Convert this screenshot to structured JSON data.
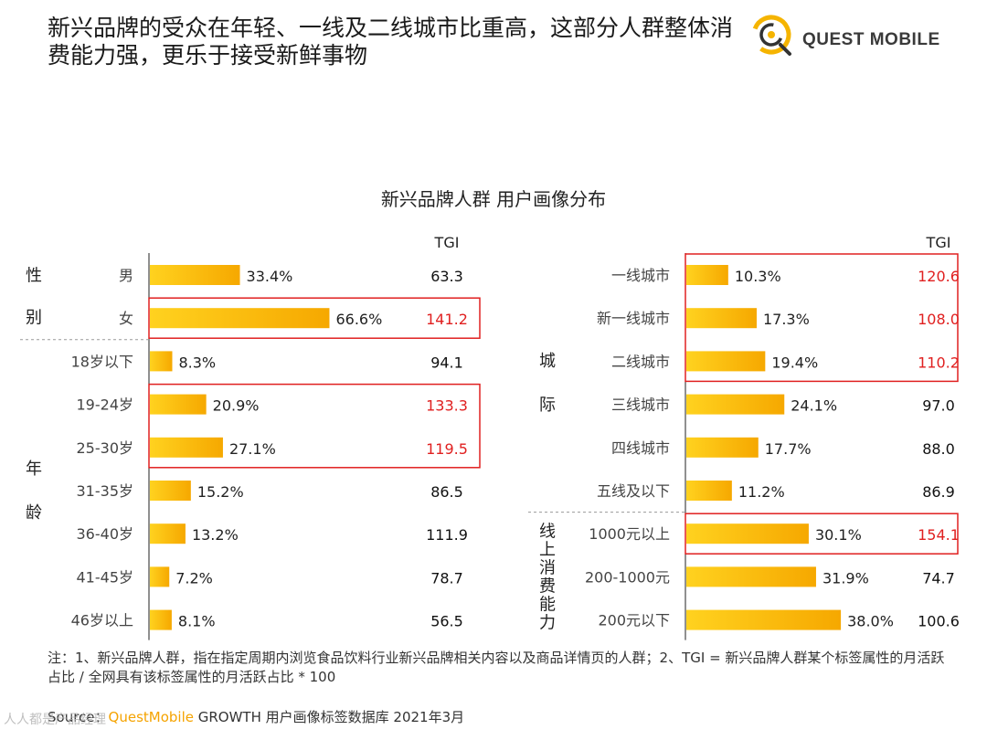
{
  "headline": "新兴品牌的受众在年轻、一线及二线城市比重高，这部分人群整体消费能力强，更乐于接受新鲜事物",
  "logo": {
    "text": "QUEST MOBILE",
    "icon": "questmobile-logo-icon"
  },
  "chart_data": {
    "type": "bar",
    "title": "新兴品牌人群 用户画像分布",
    "tgi_header": "TGI",
    "bar_color_start": "#ffd21f",
    "bar_color_end": "#f6a800",
    "highlight_color": "#e02020",
    "panels": [
      {
        "id": "left",
        "groups": [
          {
            "label": "性别",
            "categories": [
              "男",
              "女"
            ],
            "values": [
              33.4,
              66.6
            ],
            "value_labels": [
              "33.4%",
              "66.6%"
            ],
            "tgi": [
              "63.3",
              "141.2"
            ],
            "highlight": [
              false,
              true
            ]
          },
          {
            "label": "年龄",
            "categories": [
              "18岁以下",
              "19-24岁",
              "25-30岁",
              "31-35岁",
              "36-40岁",
              "41-45岁",
              "46岁以上"
            ],
            "values": [
              8.3,
              20.9,
              27.1,
              15.2,
              13.2,
              7.2,
              8.1
            ],
            "value_labels": [
              "8.3%",
              "20.9%",
              "27.1%",
              "15.2%",
              "13.2%",
              "7.2%",
              "8.1%"
            ],
            "tgi": [
              "94.1",
              "133.3",
              "119.5",
              "86.5",
              "111.9",
              "78.7",
              "56.5"
            ],
            "highlight": [
              false,
              true,
              true,
              false,
              false,
              false,
              false
            ]
          }
        ]
      },
      {
        "id": "right",
        "groups": [
          {
            "label": "城际",
            "categories": [
              "一线城市",
              "新一线城市",
              "二线城市",
              "三线城市",
              "四线城市",
              "五线及以下"
            ],
            "values": [
              10.3,
              17.3,
              19.4,
              24.1,
              17.7,
              11.2
            ],
            "value_labels": [
              "10.3%",
              "17.3%",
              "19.4%",
              "24.1%",
              "17.7%",
              "11.2%"
            ],
            "tgi": [
              "120.6",
              "108.0",
              "110.2",
              "97.0",
              "88.0",
              "86.9"
            ],
            "highlight": [
              true,
              true,
              true,
              false,
              false,
              false
            ]
          },
          {
            "label": "线上消费能力",
            "categories": [
              "1000元以上",
              "200-1000元",
              "200元以下"
            ],
            "values": [
              30.1,
              31.9,
              38.0
            ],
            "value_labels": [
              "30.1%",
              "31.9%",
              "38.0%"
            ],
            "tgi": [
              "154.1",
              "74.7",
              "100.6"
            ],
            "highlight": [
              true,
              false,
              false
            ]
          }
        ]
      }
    ]
  },
  "note": "注：1、新兴品牌人群，指在指定周期内浏览食品饮料行业新兴品牌相关内容以及商品详情页的人群；2、TGI = 新兴品牌人群某个标签属性的月活跃占比 / 全网具有该标签属性的月活跃占比 * 100",
  "source": {
    "prefix": "Source：",
    "brand": "QuestMobile",
    "suffix": " GROWTH 用户画像标签数据库 2021年3月"
  },
  "watermark": "人人都是产品经理"
}
